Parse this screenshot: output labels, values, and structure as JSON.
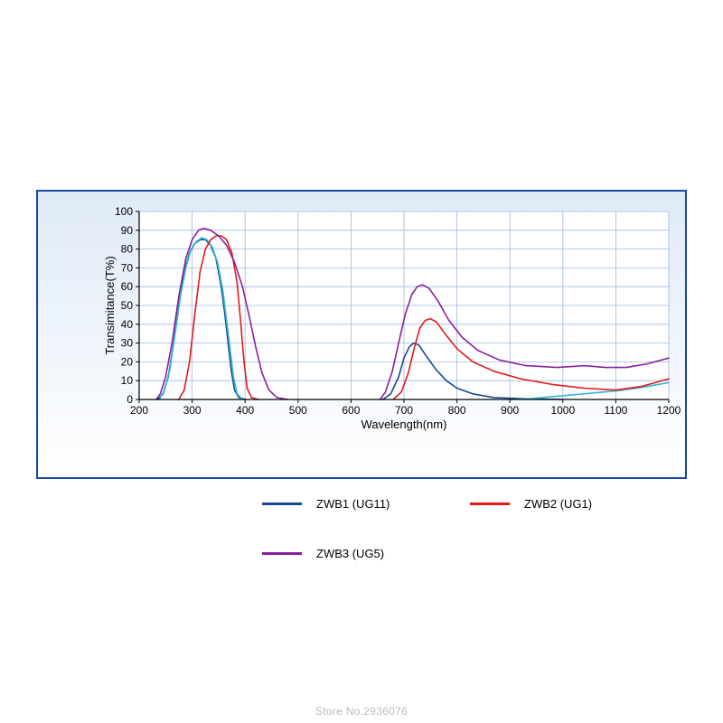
{
  "watermark": "Store No.2936076",
  "chart": {
    "type": "line",
    "x_axis": {
      "label": "Wavelength(nm)",
      "min": 200,
      "max": 1200,
      "tick_step": 100,
      "label_fontsize": 13,
      "tick_fontsize": 12
    },
    "y_axis": {
      "label": "Transimitance(T%)",
      "min": 0,
      "max": 100,
      "tick_step": 10,
      "label_fontsize": 13,
      "tick_fontsize": 12
    },
    "background_gradient": [
      "#dfeaf7",
      "#ffffff"
    ],
    "panel_border_color": "#1a4aa0",
    "plot_background": "#ffffff",
    "grid_color": "#9fb8e0",
    "axis_color": "#000000",
    "line_width": 1.6,
    "series": [
      {
        "id": "zwb1",
        "label": "ZWB1  (UG11)",
        "color": "#19498f",
        "points": [
          [
            235,
            0
          ],
          [
            245,
            3
          ],
          [
            255,
            12
          ],
          [
            265,
            30
          ],
          [
            275,
            50
          ],
          [
            285,
            68
          ],
          [
            295,
            78
          ],
          [
            305,
            83
          ],
          [
            315,
            85
          ],
          [
            325,
            85
          ],
          [
            335,
            82
          ],
          [
            345,
            75
          ],
          [
            355,
            60
          ],
          [
            362,
            45
          ],
          [
            368,
            30
          ],
          [
            374,
            15
          ],
          [
            380,
            5
          ],
          [
            388,
            1
          ],
          [
            400,
            0
          ],
          [
            660,
            0
          ],
          [
            675,
            3
          ],
          [
            690,
            12
          ],
          [
            700,
            22
          ],
          [
            710,
            28
          ],
          [
            718,
            30
          ],
          [
            728,
            29
          ],
          [
            740,
            24
          ],
          [
            760,
            16
          ],
          [
            780,
            10
          ],
          [
            800,
            6
          ],
          [
            830,
            3
          ],
          [
            870,
            1
          ],
          [
            920,
            0.5
          ],
          [
            1000,
            0
          ],
          [
            1200,
            0
          ]
        ]
      },
      {
        "id": "zwb1b",
        "label": "",
        "color": "#2fb6d6",
        "legend": false,
        "points": [
          [
            238,
            0
          ],
          [
            248,
            5
          ],
          [
            258,
            16
          ],
          [
            268,
            35
          ],
          [
            278,
            55
          ],
          [
            288,
            70
          ],
          [
            298,
            80
          ],
          [
            308,
            84
          ],
          [
            318,
            86
          ],
          [
            328,
            85
          ],
          [
            338,
            81
          ],
          [
            348,
            73
          ],
          [
            358,
            58
          ],
          [
            365,
            42
          ],
          [
            372,
            26
          ],
          [
            378,
            12
          ],
          [
            385,
            3
          ],
          [
            395,
            0
          ],
          [
            900,
            0
          ],
          [
            940,
            0.5
          ],
          [
            980,
            1.5
          ],
          [
            1020,
            2.5
          ],
          [
            1060,
            3.5
          ],
          [
            1100,
            4.5
          ],
          [
            1140,
            6
          ],
          [
            1180,
            8
          ],
          [
            1200,
            9
          ]
        ]
      },
      {
        "id": "zwb2",
        "label": "ZWB2  (UG1)",
        "color": "#e11a1a",
        "points": [
          [
            275,
            0
          ],
          [
            285,
            5
          ],
          [
            295,
            20
          ],
          [
            305,
            45
          ],
          [
            315,
            68
          ],
          [
            325,
            80
          ],
          [
            335,
            85
          ],
          [
            345,
            87
          ],
          [
            355,
            87
          ],
          [
            365,
            85
          ],
          [
            375,
            78
          ],
          [
            385,
            62
          ],
          [
            392,
            40
          ],
          [
            398,
            20
          ],
          [
            404,
            6
          ],
          [
            412,
            1
          ],
          [
            425,
            0
          ],
          [
            680,
            0
          ],
          [
            695,
            4
          ],
          [
            708,
            14
          ],
          [
            720,
            28
          ],
          [
            730,
            38
          ],
          [
            740,
            42
          ],
          [
            750,
            43
          ],
          [
            762,
            41
          ],
          [
            780,
            34
          ],
          [
            800,
            27
          ],
          [
            830,
            20
          ],
          [
            870,
            15
          ],
          [
            920,
            11
          ],
          [
            980,
            8
          ],
          [
            1040,
            6
          ],
          [
            1100,
            5
          ],
          [
            1150,
            7
          ],
          [
            1200,
            11
          ]
        ]
      },
      {
        "id": "zwb3",
        "label": "ZWB3  (UG5)",
        "color": "#8a1fa0",
        "points": [
          [
            232,
            0
          ],
          [
            240,
            3
          ],
          [
            250,
            12
          ],
          [
            262,
            30
          ],
          [
            275,
            55
          ],
          [
            288,
            75
          ],
          [
            300,
            85
          ],
          [
            312,
            90
          ],
          [
            322,
            91
          ],
          [
            335,
            90
          ],
          [
            350,
            87
          ],
          [
            365,
            82
          ],
          [
            380,
            73
          ],
          [
            395,
            60
          ],
          [
            408,
            44
          ],
          [
            420,
            28
          ],
          [
            432,
            14
          ],
          [
            445,
            5
          ],
          [
            460,
            1
          ],
          [
            480,
            0
          ],
          [
            655,
            0
          ],
          [
            665,
            4
          ],
          [
            678,
            15
          ],
          [
            690,
            30
          ],
          [
            702,
            45
          ],
          [
            715,
            56
          ],
          [
            725,
            60
          ],
          [
            735,
            61
          ],
          [
            748,
            59
          ],
          [
            765,
            52
          ],
          [
            785,
            42
          ],
          [
            810,
            33
          ],
          [
            840,
            26
          ],
          [
            880,
            21
          ],
          [
            930,
            18
          ],
          [
            990,
            17
          ],
          [
            1040,
            18
          ],
          [
            1080,
            17
          ],
          [
            1120,
            17
          ],
          [
            1160,
            19
          ],
          [
            1200,
            22
          ]
        ]
      }
    ]
  },
  "legend": {
    "items": [
      {
        "ref": "zwb1",
        "label": "ZWB1  (UG11)",
        "color": "#19498f"
      },
      {
        "ref": "zwb2",
        "label": "ZWB2  (UG1)",
        "color": "#e11a1a"
      },
      {
        "ref": "zwb3",
        "label": "ZWB3  (UG5)",
        "color": "#8a1fa0"
      }
    ]
  }
}
